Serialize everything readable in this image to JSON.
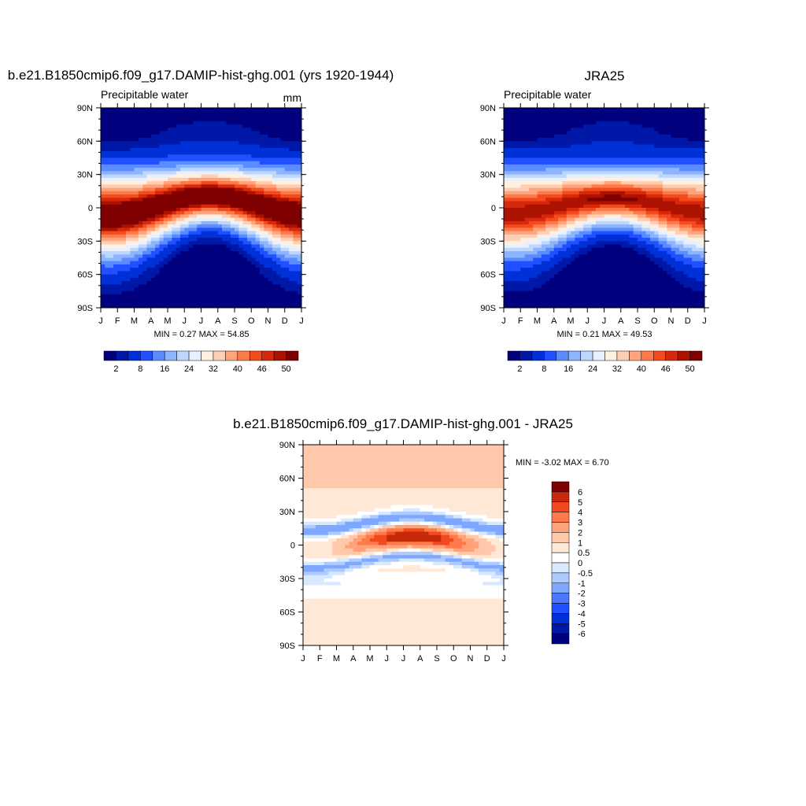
{
  "colors": {
    "scale13": [
      "#00007f",
      "#0018a8",
      "#0030d8",
      "#2050ff",
      "#5a8cff",
      "#8db4ff",
      "#bdd7ff",
      "#e6f0ff",
      "#fff0e1",
      "#ffcfb3",
      "#ffa47c",
      "#ff7a4a",
      "#f34b1e",
      "#d8280c",
      "#ad1200",
      "#7f0000"
    ],
    "diff": [
      "#00007f",
      "#0018a8",
      "#0030d8",
      "#2050ff",
      "#4a78ff",
      "#7ea8ff",
      "#aecbff",
      "#d7e8ff",
      "#ffffff",
      "#ffe8d6",
      "#ffc8aa",
      "#ffa27a",
      "#ff7a4a",
      "#f04a1e",
      "#c62a0a",
      "#7f0000"
    ]
  },
  "months": [
    "J",
    "F",
    "M",
    "A",
    "M",
    "J",
    "J",
    "A",
    "S",
    "O",
    "N",
    "D",
    "J"
  ],
  "lat_ticks": [
    "90N",
    "60N",
    "30N",
    "0",
    "30S",
    "60S",
    "90S"
  ],
  "panels": {
    "p1": {
      "title": "b.e21.B1850cmip6.f09_g17.DAMIP-hist-ghg.001 (yrs 1920-1944)",
      "left_label": "Precipitable water",
      "right_label": "mm",
      "stats": "MIN =   0.27 MAX =  54.85",
      "colorbar_labels": [
        "2",
        "8",
        "16",
        "24",
        "32",
        "40",
        "46",
        "50"
      ]
    },
    "p2": {
      "title": "JRA25",
      "left_label": "Precipitable water",
      "stats": "MIN =   0.21 MAX =  49.53",
      "colorbar_labels": [
        "2",
        "8",
        "16",
        "24",
        "32",
        "40",
        "46",
        "50"
      ]
    },
    "p3": {
      "title": "b.e21.B1850cmip6.f09_g17.DAMIP-hist-ghg.001 - JRA25",
      "stats": "MIN =  -3.02 MAX =   6.70",
      "colorbar_labels": [
        "6",
        "5",
        "4",
        "3",
        "2",
        "1",
        "0.5",
        "0",
        "-0.5",
        "-1",
        "-2",
        "-3",
        "-4",
        "-5",
        "-6"
      ]
    }
  },
  "chart_data": [
    {
      "type": "heatmap",
      "title": "b.e21.B1850cmip6.f09_g17.DAMIP-hist-ghg.001 (yrs 1920-1944)",
      "variable": "Precipitable water",
      "units": "mm",
      "x": [
        "J",
        "F",
        "M",
        "A",
        "M",
        "J",
        "J",
        "A",
        "S",
        "O",
        "N",
        "D",
        "J"
      ],
      "y": [
        "90N",
        "60N",
        "30N",
        "0",
        "30S",
        "60S",
        "90S"
      ],
      "min": 0.27,
      "max": 54.85,
      "colorbar": [
        2,
        8,
        16,
        24,
        32,
        40,
        46,
        50
      ]
    },
    {
      "type": "heatmap",
      "title": "JRA25",
      "variable": "Precipitable water",
      "x": [
        "J",
        "F",
        "M",
        "A",
        "M",
        "J",
        "J",
        "A",
        "S",
        "O",
        "N",
        "D",
        "J"
      ],
      "y": [
        "90N",
        "60N",
        "30N",
        "0",
        "30S",
        "60S",
        "90S"
      ],
      "min": 0.21,
      "max": 49.53,
      "colorbar": [
        2,
        8,
        16,
        24,
        32,
        40,
        46,
        50
      ]
    },
    {
      "type": "heatmap",
      "title": "b.e21.B1850cmip6.f09_g17.DAMIP-hist-ghg.001 - JRA25",
      "x": [
        "J",
        "F",
        "M",
        "A",
        "M",
        "J",
        "J",
        "A",
        "S",
        "O",
        "N",
        "D",
        "J"
      ],
      "y": [
        "90N",
        "60N",
        "30N",
        "0",
        "30S",
        "60S",
        "90S"
      ],
      "min": -3.02,
      "max": 6.7,
      "colorbar": [
        6,
        5,
        4,
        3,
        2,
        1,
        0.5,
        0,
        -0.5,
        -1,
        -2,
        -3,
        -4,
        -5,
        -6
      ]
    }
  ]
}
